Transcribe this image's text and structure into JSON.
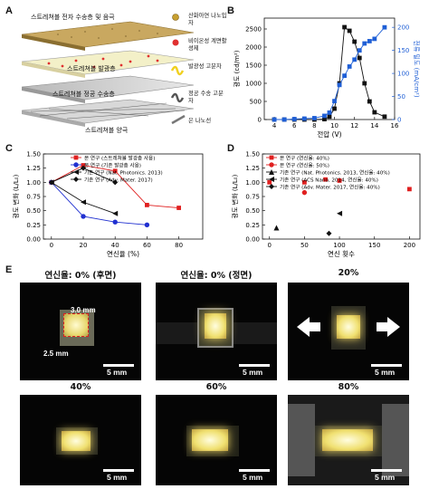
{
  "panelA": {
    "label": "A",
    "layers": [
      {
        "text": "스트레쳐블 전자 수송층 및 음극"
      },
      {
        "text": "스트레쳐블 발광층"
      },
      {
        "text": "스트레쳐블 정공 수송층"
      },
      {
        "text": "스트레쳐블 양극"
      }
    ],
    "legend": [
      {
        "text": "산화아연 나노입자",
        "color": "#c8a030",
        "icon": "gold-dot-icon"
      },
      {
        "text": "비이온성 계면활성제",
        "color": "#e03030",
        "icon": "red-dot-icon"
      },
      {
        "text": "발광성 고분자",
        "color": "#f0d020",
        "icon": "yellow-squiggle-icon"
      },
      {
        "text": "정공 수송 고분자",
        "color": "#555555",
        "icon": "gray-squiggle-icon"
      },
      {
        "text": "은 나노선",
        "color": "#777777",
        "icon": "nanowire-icon"
      }
    ]
  },
  "panelB": {
    "label": "B"
  },
  "panelC": {
    "label": "C"
  },
  "panelD": {
    "label": "D"
  },
  "panelE": {
    "label": "E",
    "photos": [
      {
        "title": "연신율: 0% (후면)",
        "scale": "5 mm",
        "dims": [
          "3.0 mm",
          "2.5 mm"
        ]
      },
      {
        "title": "연신율: 0% (정면)",
        "scale": "5 mm"
      },
      {
        "title": "20%",
        "scale": "5 mm"
      },
      {
        "title": "40%",
        "scale": "5 mm"
      },
      {
        "title": "60%",
        "scale": "5 mm"
      },
      {
        "title": "80%",
        "scale": "5 mm"
      }
    ]
  },
  "chart_data": [
    {
      "id": "B",
      "type": "line",
      "xlabel": "전압 (V)",
      "ylabel": "광도 (cd/m²)",
      "y2label": "전류 밀도 (mA/cm²)",
      "xlim": [
        3,
        16
      ],
      "ylim": [
        0,
        2800
      ],
      "y2lim": [
        0,
        220
      ],
      "xticks": [
        4,
        6,
        8,
        10,
        12,
        14,
        16
      ],
      "yticks": [
        0,
        500,
        1000,
        1500,
        2000,
        2500
      ],
      "y2ticks": [
        0,
        50,
        100,
        150,
        200
      ],
      "series": [
        {
          "axis": "left",
          "color": "#111111",
          "marker": "square",
          "x": [
            4,
            5,
            6,
            7,
            8,
            9,
            9.5,
            10,
            10.5,
            11,
            11.5,
            12,
            12.5,
            13,
            13.5,
            14,
            15
          ],
          "y": [
            0,
            0,
            0,
            0,
            0,
            10,
            80,
            300,
            1000,
            2550,
            2450,
            2150,
            1700,
            1000,
            500,
            200,
            80
          ]
        },
        {
          "axis": "right",
          "color": "#1f5fd6",
          "marker": "square",
          "x": [
            4,
            5,
            6,
            7,
            8,
            9,
            9.5,
            10,
            10.5,
            11,
            11.5,
            12,
            12.5,
            13,
            13.5,
            14,
            15
          ],
          "y": [
            0,
            0,
            1,
            2,
            3,
            8,
            15,
            40,
            75,
            95,
            115,
            130,
            150,
            165,
            170,
            175,
            200
          ]
        }
      ]
    },
    {
      "id": "C",
      "type": "line",
      "xlabel": "연신율 (%)",
      "ylabel": "광도 변화 (L/L₀)",
      "xlim": [
        -5,
        95
      ],
      "ylim": [
        0,
        1.5
      ],
      "xticks": [
        0,
        20,
        40,
        60,
        80
      ],
      "yticks": [
        0,
        0.25,
        0.5,
        0.75,
        1.0,
        1.25,
        1.5
      ],
      "series": [
        {
          "name": "본 연구 (스트레쳐블 발광층 사용)",
          "color": "#e02020",
          "marker": "square",
          "x": [
            0,
            20,
            40,
            60,
            80
          ],
          "y": [
            1.0,
            1.3,
            1.2,
            0.6,
            0.55
          ]
        },
        {
          "name": "본 연구 (기존 발광층 사용)",
          "color": "#2030d0",
          "marker": "circle",
          "x": [
            0,
            20,
            40,
            60
          ],
          "y": [
            1.0,
            0.4,
            0.3,
            0.25
          ]
        },
        {
          "name": "기존 연구 (Nat. Photonics. 2013)",
          "color": "#111111",
          "marker": "triangle-left",
          "x": [
            0,
            20,
            40
          ],
          "y": [
            1.0,
            0.65,
            0.45
          ]
        },
        {
          "name": "기존 연구 (Adv. Mater. 2017)",
          "color": "#111111",
          "marker": "diamond",
          "x": [
            0,
            20,
            40
          ],
          "y": [
            1.0,
            1.25,
            1.0
          ]
        }
      ]
    },
    {
      "id": "D",
      "type": "scatter",
      "xlabel": "연신 횟수",
      "ylabel": "광도 변화 (L/L₀)",
      "xlim": [
        -10,
        215
      ],
      "ylim": [
        0,
        1.5
      ],
      "xticks": [
        0,
        50,
        100,
        150,
        200
      ],
      "yticks": [
        0,
        0.25,
        0.5,
        0.75,
        1.0,
        1.25,
        1.5
      ],
      "series": [
        {
          "name": "본 연구 (연신율: 40%)",
          "color": "#e02020",
          "marker": "square",
          "x": [
            0,
            50,
            80,
            100,
            200
          ],
          "y": [
            1.0,
            1.0,
            1.05,
            1.03,
            0.88
          ]
        },
        {
          "name": "본 연구 (연신율: 50%)",
          "color": "#e02020",
          "marker": "circle",
          "x": [
            50
          ],
          "y": [
            0.82
          ]
        },
        {
          "name": "기존 연구 (Nat. Photonics. 2013, 연신율: 40%)",
          "color": "#111111",
          "marker": "triangle-up",
          "x": [
            10
          ],
          "y": [
            0.2
          ]
        },
        {
          "name": "기존 연구 (ACS Nano, 2014, 연신율: 40%)",
          "color": "#111111",
          "marker": "triangle-left",
          "x": [
            100
          ],
          "y": [
            0.45
          ]
        },
        {
          "name": "기존 연구 (Adv. Mater. 2017, 연신율: 40%)",
          "color": "#111111",
          "marker": "diamond",
          "x": [
            85
          ],
          "y": [
            0.1
          ]
        }
      ]
    }
  ]
}
